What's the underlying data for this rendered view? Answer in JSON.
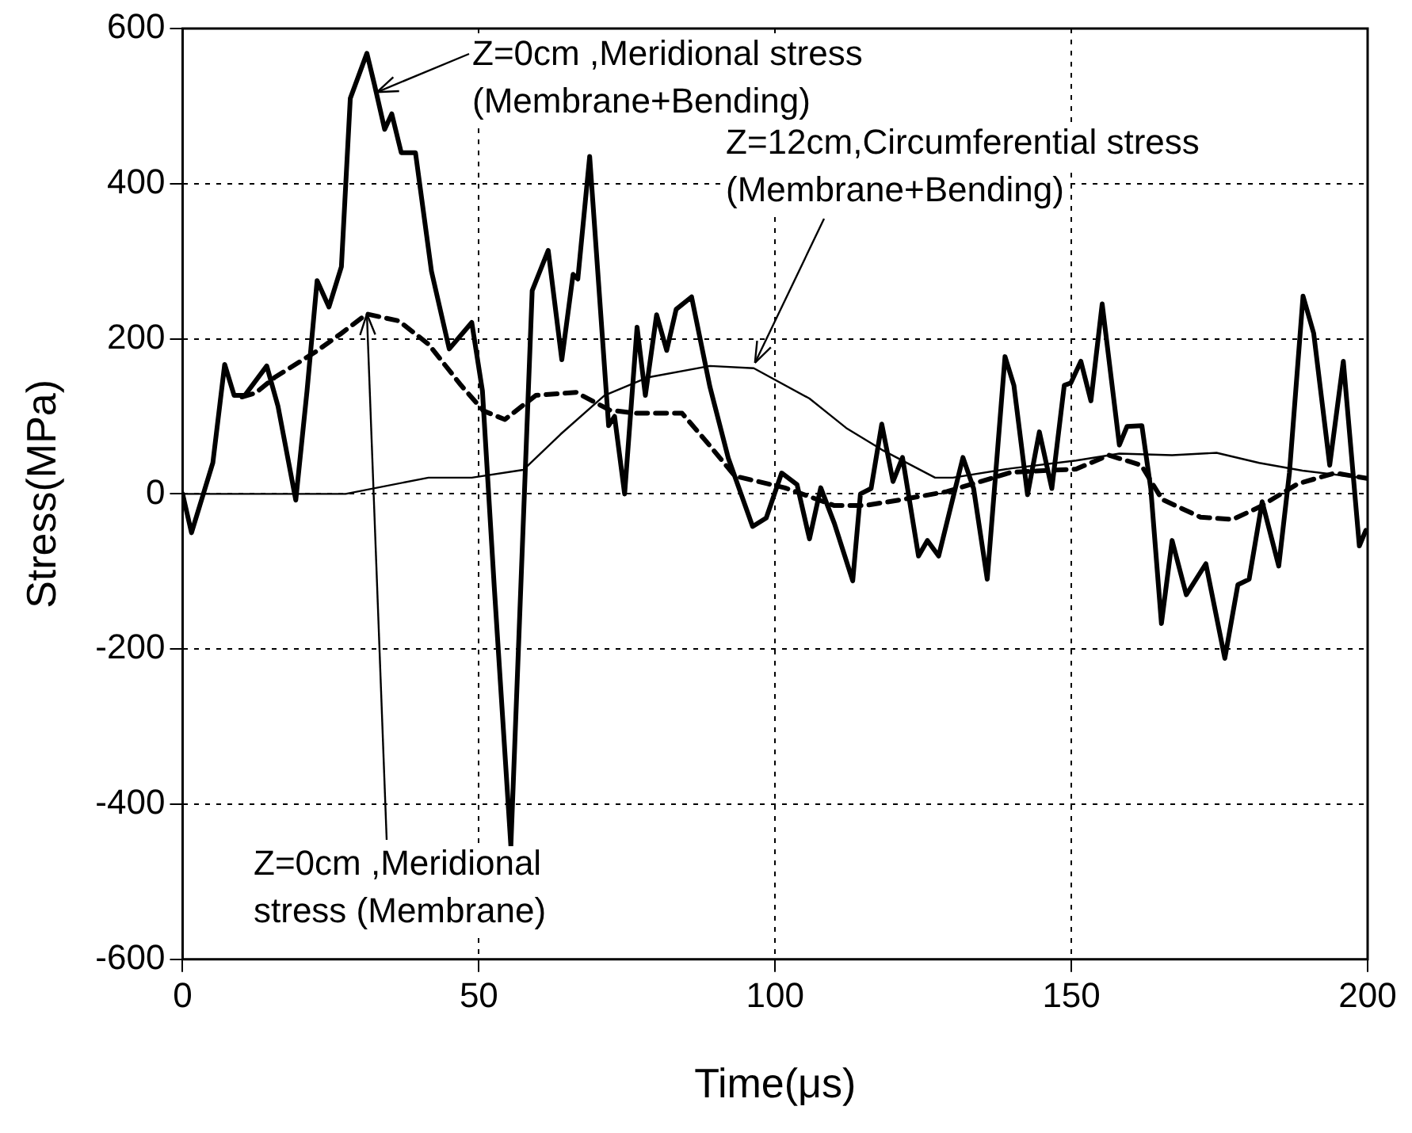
{
  "chart_data": {
    "type": "line",
    "xlabel": "Time(μs)",
    "ylabel": "Stress(MPa)",
    "xlim": [
      0,
      200
    ],
    "xticks": [
      0,
      50,
      100,
      150,
      200
    ],
    "ylim": [
      -600,
      600
    ],
    "yticks": [
      -600,
      -400,
      -200,
      0,
      200,
      400,
      600
    ],
    "grid": true,
    "legend": false,
    "marker": "none",
    "series": [
      {
        "color": "#000000",
        "line_style": "solid",
        "x": [
          0,
          1.5,
          5.1,
          7.1,
          8.7,
          10.5,
          14.2,
          16.1,
          19.1,
          21,
          22.7,
          24.7,
          26.8,
          28.3,
          31.1,
          32.4,
          34.1,
          35.3,
          36.9,
          39.3,
          42,
          45,
          48.8,
          50.6,
          52.6,
          55.4,
          59,
          61.7,
          64,
          65.9,
          66.7,
          68.7,
          71.9,
          72.9,
          74.6,
          76.7,
          78.1,
          80,
          81.7,
          83.3,
          85.9,
          89,
          92.1,
          96.2,
          98.5,
          101.1,
          103.7,
          105.8,
          107.7,
          110,
          113.1,
          114.4,
          116.2,
          118,
          119.9,
          121.5,
          124.2,
          125.7,
          127.6,
          131.7,
          133.5,
          135.8,
          138.8,
          140.3,
          142.6,
          144.6,
          146.7,
          148.8,
          149.9,
          151.6,
          153.3,
          155.2,
          158.1,
          159.4,
          161.9,
          163.4,
          165.2,
          167,
          169.4,
          172.7,
          175.9,
          178.1,
          180,
          182.2,
          185,
          186.8,
          189.1,
          190.9,
          193.6,
          195.9,
          198.6,
          199.7
        ],
        "values": [
          0,
          -50,
          40,
          167,
          127,
          127,
          165,
          113,
          -8,
          133,
          275,
          241,
          293,
          510,
          568,
          527,
          470,
          490,
          440,
          440,
          287,
          187,
          221,
          133,
          -120,
          -454,
          262,
          314,
          173,
          283,
          277,
          435,
          88,
          100,
          0,
          215,
          127,
          231,
          185,
          238,
          254,
          138,
          46,
          -42,
          -31,
          27,
          12,
          -58,
          8,
          -38,
          -112,
          0,
          7,
          90,
          16,
          47,
          -80,
          -60,
          -80,
          47,
          7,
          -110,
          177,
          140,
          -1,
          80,
          7,
          140,
          143,
          171,
          120,
          245,
          63,
          87,
          88,
          7,
          -167,
          -60,
          -130,
          -90,
          -212,
          -117,
          -110,
          -10,
          -93,
          27,
          255,
          207,
          37,
          171,
          -67,
          -47
        ]
      },
      {
        "color": "#000000",
        "line_style": "dashed",
        "x": [
          10,
          12.3,
          15.5,
          22.4,
          26.8,
          31.1,
          36.5,
          41.5,
          47,
          50.8,
          54.4,
          59.6,
          66.4,
          72.1,
          76.6,
          84.3,
          89,
          93.2,
          101.6,
          110,
          115.2,
          121.6,
          129,
          139.9,
          150.8,
          156.3,
          161.8,
          165.3,
          171.8,
          177.2,
          181.7,
          188.2,
          194.5,
          199.9
        ],
        "values": [
          125,
          130,
          150,
          183,
          207,
          232,
          223,
          193,
          140,
          107,
          96,
          127,
          131,
          108,
          104,
          104,
          62,
          23,
          8,
          -15,
          -15,
          -7,
          3,
          28,
          32,
          50,
          37,
          -7,
          -30,
          -33,
          -17,
          13,
          27,
          20
        ]
      },
      {
        "color": "#000000",
        "line_style": "solid",
        "x": [
          0,
          27.5,
          41.5,
          48.8,
          57.5,
          63.8,
          71.2,
          78.4,
          89,
          96.4,
          105.8,
          112,
          118,
          127,
          130,
          139.9,
          150.8,
          158.1,
          167,
          174.5,
          181.7,
          189,
          199.9
        ],
        "values": [
          0,
          0,
          21,
          21,
          31,
          77,
          127,
          150,
          165,
          162,
          123,
          85,
          57,
          21,
          21,
          33,
          43,
          52,
          50,
          53,
          40,
          30,
          20
        ]
      }
    ],
    "annotations": [
      {
        "text": "Z=0cm ,Meridional stress\n(Membrane+Bending)",
        "x": 32.8,
        "y": 518
      },
      {
        "text": "Z=12cm,Circumferential stress\n(Membrane+Bending)",
        "x": 96.6,
        "y": 169
      },
      {
        "text": "Z=0cm ,Meridional\nstress (Membrane)",
        "x": 31.1,
        "y": 232
      }
    ]
  }
}
